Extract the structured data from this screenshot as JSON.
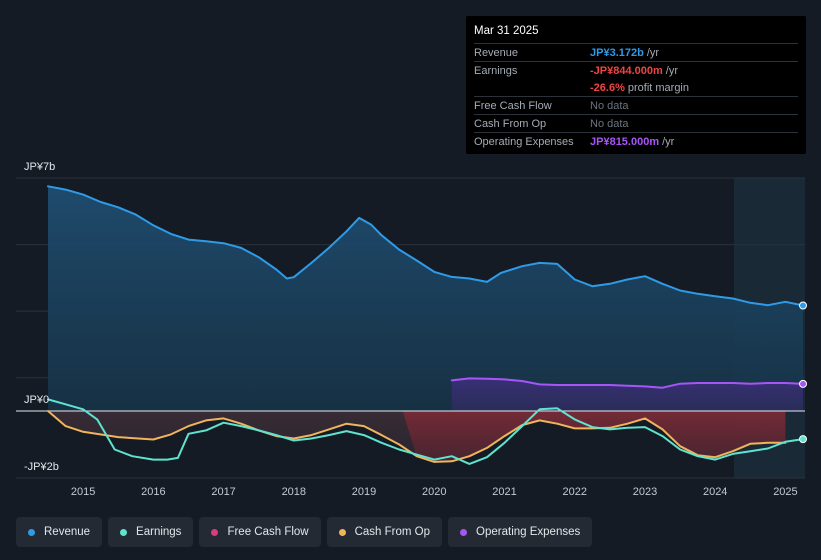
{
  "tooltip": {
    "date": "Mar 31 2025",
    "rows": [
      {
        "label": "Revenue",
        "value": "JP¥3.172b",
        "unit": "/yr",
        "color": "#2f9be8"
      },
      {
        "label": "Earnings",
        "value": "-JP¥844.000m",
        "unit": "/yr",
        "color": "#ef4444"
      },
      {
        "label": "",
        "value": "-26.6%",
        "unit": "profit margin",
        "color": "#ef4444"
      },
      {
        "label": "Free Cash Flow",
        "value": "No data",
        "unit": "",
        "color": "#6c747e"
      },
      {
        "label": "Cash From Op",
        "value": "No data",
        "unit": "",
        "color": "#6c747e"
      },
      {
        "label": "Operating Expenses",
        "value": "JP¥815.000m",
        "unit": "/yr",
        "color": "#a855f7"
      }
    ]
  },
  "legend": [
    {
      "label": "Revenue",
      "color": "#2f9be8"
    },
    {
      "label": "Earnings",
      "color": "#5fe3d0"
    },
    {
      "label": "Free Cash Flow",
      "color": "#d63f7a"
    },
    {
      "label": "Cash From Op",
      "color": "#f0b45c"
    },
    {
      "label": "Operating Expenses",
      "color": "#a855f7"
    }
  ],
  "chart_data": {
    "type": "area",
    "title": "",
    "unit": "JP¥ billions",
    "ylim": [
      -2,
      7
    ],
    "xlim": [
      2014.5,
      2025.25
    ],
    "y_tick_labels": [
      {
        "value": 7,
        "label": "JP¥7b"
      },
      {
        "value": 0,
        "label": "JP¥0"
      },
      {
        "value": -2,
        "label": "-JP¥2b"
      }
    ],
    "x_ticks": [
      2015,
      2016,
      2017,
      2018,
      2019,
      2020,
      2021,
      2022,
      2023,
      2024,
      2025
    ],
    "x_tick_labels": [
      "2015",
      "2016",
      "2017",
      "2018",
      "2019",
      "2020",
      "2021",
      "2022",
      "2023",
      "2024",
      "2025"
    ],
    "series": [
      {
        "name": "Revenue",
        "color": "#2f9be8",
        "points": [
          [
            2014.5,
            6.75
          ],
          [
            2014.75,
            6.65
          ],
          [
            2015.0,
            6.5
          ],
          [
            2015.25,
            6.28
          ],
          [
            2015.5,
            6.12
          ],
          [
            2015.75,
            5.9
          ],
          [
            2016.0,
            5.58
          ],
          [
            2016.25,
            5.32
          ],
          [
            2016.5,
            5.15
          ],
          [
            2016.75,
            5.1
          ],
          [
            2017.0,
            5.04
          ],
          [
            2017.25,
            4.9
          ],
          [
            2017.5,
            4.62
          ],
          [
            2017.75,
            4.25
          ],
          [
            2017.9,
            3.98
          ],
          [
            2018.0,
            4.02
          ],
          [
            2018.25,
            4.45
          ],
          [
            2018.5,
            4.9
          ],
          [
            2018.75,
            5.4
          ],
          [
            2018.93,
            5.8
          ],
          [
            2019.1,
            5.6
          ],
          [
            2019.25,
            5.28
          ],
          [
            2019.5,
            4.85
          ],
          [
            2019.75,
            4.52
          ],
          [
            2020.0,
            4.18
          ],
          [
            2020.25,
            4.03
          ],
          [
            2020.5,
            3.98
          ],
          [
            2020.75,
            3.88
          ],
          [
            2020.95,
            4.15
          ],
          [
            2021.25,
            4.35
          ],
          [
            2021.5,
            4.45
          ],
          [
            2021.75,
            4.42
          ],
          [
            2022.0,
            3.95
          ],
          [
            2022.25,
            3.75
          ],
          [
            2022.5,
            3.82
          ],
          [
            2022.75,
            3.95
          ],
          [
            2023.0,
            4.05
          ],
          [
            2023.25,
            3.82
          ],
          [
            2023.5,
            3.62
          ],
          [
            2023.75,
            3.52
          ],
          [
            2024.0,
            3.45
          ],
          [
            2024.25,
            3.38
          ],
          [
            2024.5,
            3.25
          ],
          [
            2024.75,
            3.18
          ],
          [
            2025.0,
            3.28
          ],
          [
            2025.25,
            3.17
          ]
        ]
      },
      {
        "name": "Earnings",
        "color": "#5fe3d0",
        "points": [
          [
            2014.5,
            0.35
          ],
          [
            2014.75,
            0.2
          ],
          [
            2015.0,
            0.05
          ],
          [
            2015.2,
            -0.25
          ],
          [
            2015.45,
            -1.15
          ],
          [
            2015.7,
            -1.35
          ],
          [
            2016.0,
            -1.45
          ],
          [
            2016.2,
            -1.45
          ],
          [
            2016.35,
            -1.4
          ],
          [
            2016.5,
            -0.68
          ],
          [
            2016.75,
            -0.58
          ],
          [
            2017.0,
            -0.35
          ],
          [
            2017.25,
            -0.45
          ],
          [
            2017.5,
            -0.58
          ],
          [
            2017.75,
            -0.72
          ],
          [
            2018.0,
            -0.88
          ],
          [
            2018.25,
            -0.82
          ],
          [
            2018.5,
            -0.72
          ],
          [
            2018.75,
            -0.6
          ],
          [
            2019.0,
            -0.72
          ],
          [
            2019.25,
            -0.95
          ],
          [
            2019.5,
            -1.15
          ],
          [
            2019.75,
            -1.3
          ],
          [
            2020.0,
            -1.45
          ],
          [
            2020.25,
            -1.35
          ],
          [
            2020.5,
            -1.58
          ],
          [
            2020.75,
            -1.38
          ],
          [
            2021.0,
            -0.95
          ],
          [
            2021.25,
            -0.45
          ],
          [
            2021.5,
            0.05
          ],
          [
            2021.75,
            0.08
          ],
          [
            2022.0,
            -0.25
          ],
          [
            2022.25,
            -0.48
          ],
          [
            2022.5,
            -0.55
          ],
          [
            2022.75,
            -0.5
          ],
          [
            2023.0,
            -0.48
          ],
          [
            2023.25,
            -0.75
          ],
          [
            2023.5,
            -1.15
          ],
          [
            2023.75,
            -1.35
          ],
          [
            2024.0,
            -1.45
          ],
          [
            2024.25,
            -1.28
          ],
          [
            2024.5,
            -1.2
          ],
          [
            2024.75,
            -1.12
          ],
          [
            2025.0,
            -0.92
          ],
          [
            2025.25,
            -0.84
          ]
        ]
      },
      {
        "name": "Cash From Op",
        "color": "#f0b45c",
        "points": [
          [
            2014.5,
            0.0
          ],
          [
            2014.75,
            -0.45
          ],
          [
            2015.0,
            -0.62
          ],
          [
            2015.5,
            -0.78
          ],
          [
            2016.0,
            -0.85
          ],
          [
            2016.25,
            -0.7
          ],
          [
            2016.5,
            -0.45
          ],
          [
            2016.75,
            -0.28
          ],
          [
            2017.0,
            -0.22
          ],
          [
            2017.25,
            -0.38
          ],
          [
            2017.5,
            -0.58
          ],
          [
            2017.75,
            -0.75
          ],
          [
            2018.0,
            -0.82
          ],
          [
            2018.25,
            -0.72
          ],
          [
            2018.5,
            -0.55
          ],
          [
            2018.75,
            -0.38
          ],
          [
            2019.0,
            -0.45
          ],
          [
            2019.25,
            -0.72
          ],
          [
            2019.5,
            -1.0
          ],
          [
            2019.75,
            -1.35
          ],
          [
            2020.0,
            -1.52
          ],
          [
            2020.25,
            -1.5
          ],
          [
            2020.5,
            -1.35
          ],
          [
            2020.75,
            -1.1
          ],
          [
            2021.0,
            -0.75
          ],
          [
            2021.25,
            -0.42
          ],
          [
            2021.5,
            -0.28
          ],
          [
            2021.75,
            -0.38
          ],
          [
            2022.0,
            -0.52
          ],
          [
            2022.25,
            -0.52
          ],
          [
            2022.5,
            -0.5
          ],
          [
            2022.75,
            -0.38
          ],
          [
            2023.0,
            -0.22
          ],
          [
            2023.25,
            -0.55
          ],
          [
            2023.5,
            -1.05
          ],
          [
            2023.75,
            -1.32
          ],
          [
            2024.0,
            -1.38
          ],
          [
            2024.25,
            -1.2
          ],
          [
            2024.5,
            -0.98
          ],
          [
            2024.75,
            -0.95
          ],
          [
            2025.0,
            -0.95
          ]
        ]
      },
      {
        "name": "Free Cash Flow",
        "color": "#d63f7a",
        "points": [
          [
            2019.55,
            0.0
          ],
          [
            2019.75,
            -1.35
          ],
          [
            2020.0,
            -1.52
          ],
          [
            2020.25,
            -1.5
          ],
          [
            2020.5,
            -1.35
          ],
          [
            2020.75,
            -1.1
          ],
          [
            2021.0,
            -0.75
          ],
          [
            2021.25,
            -0.42
          ],
          [
            2021.5,
            -0.28
          ],
          [
            2021.75,
            -0.38
          ],
          [
            2022.0,
            -0.52
          ],
          [
            2022.25,
            -0.52
          ],
          [
            2022.5,
            -0.5
          ],
          [
            2022.75,
            -0.38
          ],
          [
            2023.0,
            -0.22
          ],
          [
            2023.25,
            -0.55
          ],
          [
            2023.5,
            -1.05
          ],
          [
            2023.75,
            -1.32
          ],
          [
            2024.0,
            -1.38
          ],
          [
            2024.25,
            -1.2
          ],
          [
            2024.5,
            -0.98
          ],
          [
            2024.75,
            -0.95
          ],
          [
            2025.0,
            -0.95
          ]
        ]
      },
      {
        "name": "Operating Expenses",
        "color": "#a855f7",
        "points": [
          [
            2020.25,
            0.92
          ],
          [
            2020.5,
            0.98
          ],
          [
            2020.75,
            0.97
          ],
          [
            2021.0,
            0.95
          ],
          [
            2021.25,
            0.9
          ],
          [
            2021.5,
            0.8
          ],
          [
            2021.75,
            0.78
          ],
          [
            2022.0,
            0.78
          ],
          [
            2022.5,
            0.78
          ],
          [
            2022.75,
            0.76
          ],
          [
            2023.0,
            0.74
          ],
          [
            2023.25,
            0.7
          ],
          [
            2023.5,
            0.82
          ],
          [
            2023.75,
            0.84
          ],
          [
            2024.0,
            0.84
          ],
          [
            2024.25,
            0.84
          ],
          [
            2024.5,
            0.82
          ],
          [
            2024.75,
            0.84
          ],
          [
            2025.0,
            0.84
          ],
          [
            2025.25,
            0.815
          ]
        ]
      }
    ]
  }
}
